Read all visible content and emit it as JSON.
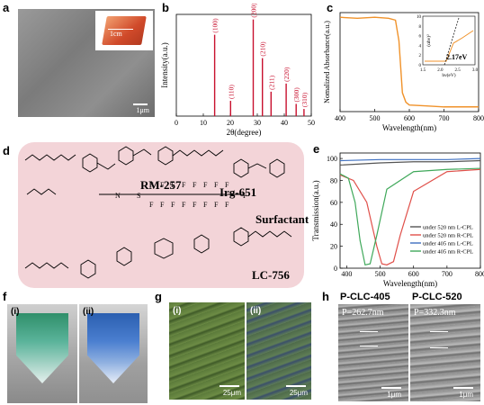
{
  "labels": {
    "a": "a",
    "b": "b",
    "c": "c",
    "d": "d",
    "e": "e",
    "f": "f",
    "g": "g",
    "h": "h"
  },
  "panel_a": {
    "inset_scale": "1cm",
    "scale": "1μm"
  },
  "panel_d": {
    "compounds": [
      "RM-257",
      "Irg-651",
      "Surfactant",
      "LC-756"
    ]
  },
  "panel_f": {
    "sub": [
      "(i)",
      "(ii)"
    ]
  },
  "panel_g": {
    "sub": [
      "(i)",
      "(ii)"
    ],
    "scale": [
      "25μm",
      "25μm"
    ]
  },
  "panel_h": {
    "titles": [
      "P-CLC-405",
      "P-CLC-520"
    ],
    "pitch": [
      "P=262.7nm",
      "P=332.3nm"
    ],
    "scale": [
      "1μm",
      "1μm"
    ]
  },
  "chart_data": [
    {
      "type": "bar",
      "panel": "b",
      "xlabel": "2θ(degree)",
      "ylabel": "Intensity(a.u.)",
      "xlim": [
        0,
        50
      ],
      "xticks": [
        0,
        10,
        20,
        30,
        40,
        50
      ],
      "peaks": [
        {
          "x": 14.2,
          "h": 0.8,
          "label": "(100)"
        },
        {
          "x": 20.1,
          "h": 0.15,
          "label": "(110)"
        },
        {
          "x": 28.5,
          "h": 0.95,
          "label": "(200)"
        },
        {
          "x": 31.9,
          "h": 0.57,
          "label": "(210)"
        },
        {
          "x": 35.1,
          "h": 0.24,
          "label": "(211)"
        },
        {
          "x": 40.7,
          "h": 0.32,
          "label": "(220)"
        },
        {
          "x": 44.4,
          "h": 0.12,
          "label": "(300)"
        },
        {
          "x": 47.3,
          "h": 0.07,
          "label": "(310)"
        }
      ]
    },
    {
      "type": "line",
      "panel": "c",
      "xlabel": "Wavelength(nm)",
      "ylabel": "Nomalized Absorbance(a.u.)",
      "xlim": [
        400,
        800
      ],
      "ylim": [
        0,
        1.05
      ],
      "xticks": [
        400,
        500,
        600,
        700,
        800
      ],
      "color": "#f0922a",
      "x": [
        400,
        450,
        500,
        540,
        560,
        570,
        580,
        590,
        600,
        650,
        700,
        800
      ],
      "y": [
        1.0,
        0.99,
        1.0,
        0.99,
        0.97,
        0.75,
        0.2,
        0.1,
        0.07,
        0.06,
        0.05,
        0.05
      ],
      "inset": {
        "xlabel": "hν(eV)",
        "ylabel": "(αhν)²",
        "xlim": [
          1.5,
          3.0
        ],
        "xticks": [
          "1.5",
          "2.0",
          "2.5",
          "3.0"
        ],
        "yticks": [
          "0",
          "2",
          "4",
          "6",
          "8",
          "10"
        ],
        "annotation": "2.17eV"
      }
    },
    {
      "type": "line",
      "panel": "e",
      "xlabel": "Wavelength(nm)",
      "ylabel": "Transmission(a.u.)",
      "xlim": [
        400,
        800
      ],
      "ylim": [
        0,
        105
      ],
      "xticks": [
        400,
        500,
        600,
        700,
        800
      ],
      "yticks": [
        0,
        20,
        40,
        60,
        80,
        100
      ],
      "series": [
        {
          "name": "under 520 nm L-CPL",
          "color": "#555555",
          "x": [
            380,
            500,
            600,
            700,
            800
          ],
          "y": [
            94,
            96,
            97,
            97,
            98
          ]
        },
        {
          "name": "under 520 nm R-CPL",
          "color": "#e0504a",
          "x": [
            380,
            420,
            460,
            490,
            505,
            520,
            540,
            560,
            600,
            700,
            800
          ],
          "y": [
            85,
            80,
            60,
            20,
            4,
            3,
            6,
            30,
            70,
            88,
            90
          ]
        },
        {
          "name": "under 405 nm L-CPL",
          "color": "#3d6fc0",
          "x": [
            380,
            500,
            600,
            700,
            800
          ],
          "y": [
            98,
            99,
            99,
            99,
            100
          ]
        },
        {
          "name": "under 405 nm R-CPL",
          "color": "#3fa85a",
          "x": [
            380,
            405,
            425,
            440,
            455,
            470,
            490,
            520,
            600,
            700,
            800
          ],
          "y": [
            86,
            82,
            60,
            25,
            3,
            4,
            30,
            72,
            88,
            90,
            91
          ]
        }
      ]
    }
  ]
}
